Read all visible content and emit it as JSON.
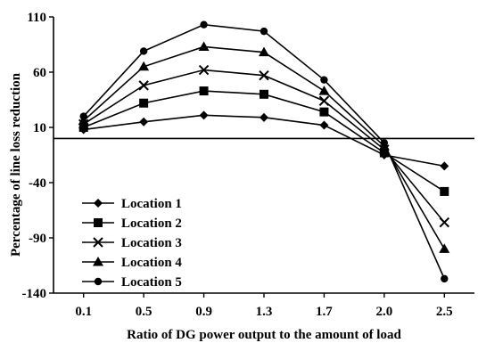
{
  "chart_data": {
    "type": "line",
    "title": "",
    "xlabel": "Ratio of DG power output to the amount of load",
    "ylabel": "Percentage of line loss reduction",
    "categories": [
      "0.1",
      "0.5",
      "0.9",
      "1.3",
      "1.7",
      "2.0",
      "2.5"
    ],
    "x": [
      0.1,
      0.5,
      0.9,
      1.3,
      1.7,
      2.0,
      2.5
    ],
    "ylim": [
      -140,
      110
    ],
    "yticks": [
      110,
      60,
      10,
      -40,
      -90,
      -140
    ],
    "reference_line_y": 0,
    "grid": false,
    "legend_position": "bottom-left",
    "series": [
      {
        "name": "Location 1",
        "marker": "diamond",
        "values": [
          8,
          15,
          21,
          19,
          12,
          -15,
          -25
        ]
      },
      {
        "name": "Location 2",
        "marker": "square",
        "values": [
          10,
          32,
          43,
          40,
          24,
          -13,
          -48
        ]
      },
      {
        "name": "Location 3",
        "marker": "x",
        "values": [
          13,
          48,
          62,
          57,
          34,
          -10,
          -76
        ]
      },
      {
        "name": "Location 4",
        "marker": "triangle",
        "values": [
          16,
          65,
          83,
          78,
          43,
          -7,
          -100
        ]
      },
      {
        "name": "Location 5",
        "marker": "circle",
        "values": [
          20,
          79,
          103,
          97,
          53,
          -4,
          -127
        ]
      }
    ]
  },
  "colors": {
    "line": "#000000",
    "background": "#ffffff"
  }
}
